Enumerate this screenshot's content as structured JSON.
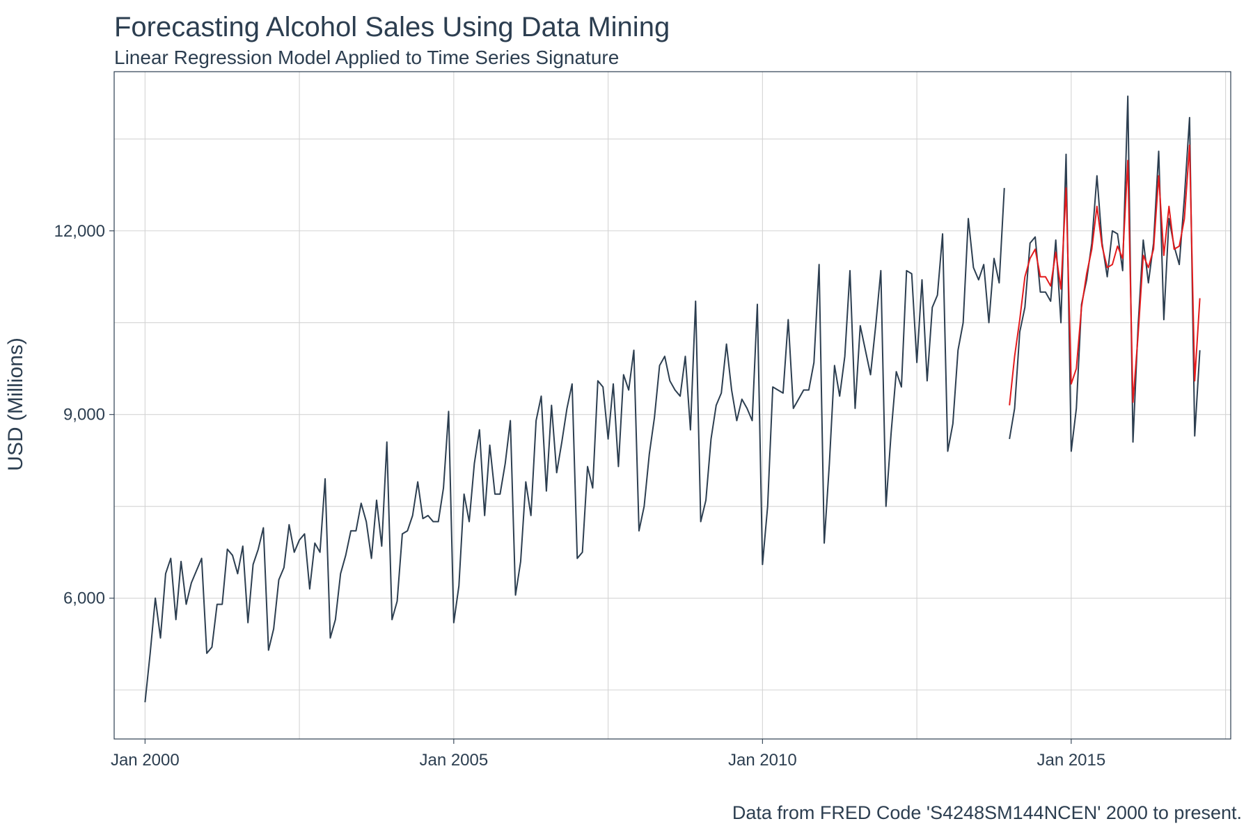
{
  "chart_data": {
    "type": "line",
    "title": "Forecasting Alcohol Sales Using Data Mining",
    "subtitle": "Linear Regression Model Applied to Time Series Signature",
    "caption": "Data from FRED Code 'S4248SM144NCEN' 2000 to present.",
    "xlabel": "",
    "ylabel": "USD (Millions)",
    "xlim": [
      "1999-07-01",
      "2017-08-01"
    ],
    "ylim": [
      3700,
      14600
    ],
    "x_ticks": [
      {
        "date": "2000-01-01",
        "label": "Jan 2000"
      },
      {
        "date": "2005-01-01",
        "label": "Jan 2005"
      },
      {
        "date": "2010-01-01",
        "label": "Jan 2010"
      },
      {
        "date": "2015-01-01",
        "label": "Jan 2015"
      }
    ],
    "y_ticks": [
      {
        "value": 6000,
        "label": "6,000"
      },
      {
        "value": 9000,
        "label": "9,000"
      },
      {
        "value": 12000,
        "label": "12,000"
      }
    ],
    "y_minor_gridlines": [
      4500,
      7500,
      10500,
      13500
    ],
    "x_minor_gridlines": [
      "2002-07-01",
      "2007-07-01",
      "2012-07-01",
      "2017-07-01"
    ],
    "grid": true,
    "legend": "none",
    "series": [
      {
        "color": "#2c3e50",
        "start": "2000-01",
        "frequency": "monthly",
        "values": [
          4300,
          5100,
          6000,
          5350,
          6400,
          6650,
          5650,
          6600,
          5900,
          6250,
          6450,
          6650,
          5100,
          5200,
          5900,
          5900,
          6800,
          6700,
          6400,
          6850,
          5600,
          6550,
          6800,
          7150,
          5150,
          5500,
          6300,
          6500,
          7200,
          6750,
          6950,
          7050,
          6150,
          6900,
          6750,
          7950,
          5350,
          5650,
          6400,
          6700,
          7100,
          7100,
          7550,
          7250,
          6650,
          7600,
          6850,
          8550,
          5650,
          5950,
          7050,
          7100,
          7350,
          7900,
          7300,
          7350,
          7250,
          7250,
          7800,
          9050,
          5600,
          6200,
          7700,
          7250,
          8200,
          8750,
          7350,
          8500,
          7700,
          7700,
          8200,
          8900,
          6050,
          6600,
          7900,
          7350,
          8900,
          9300,
          7750,
          9150,
          8050,
          8550,
          9100,
          9500,
          6650,
          6750,
          8150,
          7800,
          9550,
          9450,
          8600,
          9500,
          8150,
          9650,
          9400,
          10050,
          7100,
          7500,
          8350,
          8950,
          9800,
          9950,
          9550,
          9400,
          9300,
          9950,
          8750,
          10850,
          7250,
          7600,
          8600,
          9150,
          9350,
          10150,
          9400,
          8900,
          9250,
          9100,
          8900,
          10800,
          6550,
          7500,
          9450,
          9400,
          9350,
          10550,
          9100,
          9250,
          9400,
          9400,
          9850,
          11450,
          6900,
          8200,
          9800,
          9300,
          9950,
          11350,
          9100,
          10450,
          10050,
          9650,
          10450,
          11350,
          7500,
          8700,
          9700,
          9450,
          11350,
          11300,
          9850,
          11200,
          9550,
          10750,
          10950,
          11950,
          8400,
          8850,
          10050,
          10500,
          12200,
          11400,
          11200,
          11450,
          10500,
          11550,
          11150,
          12700
        ]
      },
      {
        "color": "#2c3e50",
        "start": "2014-01",
        "frequency": "monthly",
        "values": [
          8600,
          9100,
          10350,
          10750,
          11800,
          11900,
          11000,
          11000,
          10850,
          11850,
          10500,
          13250,
          8400,
          9100,
          10800,
          11200,
          11800,
          12900,
          11800,
          11250,
          12000,
          11950,
          11350,
          14200,
          8550,
          10450,
          11850,
          11150,
          11800,
          13300,
          10550,
          12200,
          11750,
          11450,
          12550,
          13850,
          8650,
          10050
        ]
      },
      {
        "color": "#e31a1c",
        "start": "2014-01",
        "frequency": "monthly",
        "values": [
          9150,
          9950,
          10550,
          11250,
          11550,
          11700,
          11250,
          11250,
          11100,
          11650,
          11050,
          12700,
          9500,
          9750,
          10750,
          11300,
          11700,
          12400,
          11750,
          11400,
          11450,
          11750,
          11550,
          13150,
          9200,
          10300,
          11600,
          11400,
          11700,
          12900,
          11600,
          12400,
          11700,
          11750,
          12200,
          13400,
          9550,
          10900
        ]
      }
    ]
  }
}
